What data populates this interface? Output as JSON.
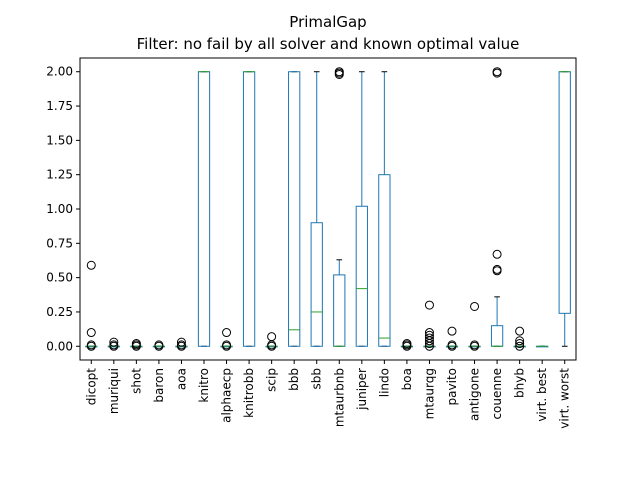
{
  "chart_data": {
    "type": "boxplot",
    "title": "PrimalGap",
    "subtitle": "Filter: no fail by all solver and known optimal value",
    "xlabel": "",
    "ylabel": "",
    "ylim": [
      -0.1,
      2.1
    ],
    "yticks": [
      0.0,
      0.25,
      0.5,
      0.75,
      1.0,
      1.25,
      1.5,
      1.75,
      2.0
    ],
    "ytick_labels": [
      "0.00",
      "0.25",
      "0.50",
      "0.75",
      "1.00",
      "1.25",
      "1.50",
      "1.75",
      "2.00"
    ],
    "grid": false,
    "legend": "none",
    "colors": {
      "box": "#1f77b4",
      "median": "#2ca02c",
      "whisker": "#000000",
      "flier": "#000000"
    },
    "categories": [
      "dicopt",
      "muriqui",
      "shot",
      "baron",
      "aoa",
      "knitro",
      "alphaecp",
      "knitrobb",
      "scip",
      "bbb",
      "sbb",
      "mtaurbnb",
      "juniper",
      "lindo",
      "boa",
      "mtaurqg",
      "pavito",
      "antigone",
      "couenne",
      "bhyb",
      "virt. best",
      "virt. worst"
    ],
    "boxes": [
      {
        "q1": 0.0,
        "median": 0.0,
        "q3": 0.0,
        "whislo": 0.0,
        "whishi": 0.0,
        "fliers": [
          0.0,
          0.01,
          0.1,
          0.59
        ]
      },
      {
        "q1": 0.0,
        "median": 0.0,
        "q3": 0.0,
        "whislo": 0.0,
        "whishi": 0.0,
        "fliers": [
          0.0,
          0.01,
          0.03
        ]
      },
      {
        "q1": 0.0,
        "median": 0.0,
        "q3": 0.0,
        "whislo": 0.0,
        "whishi": 0.0,
        "fliers": [
          0.0,
          0.01,
          0.02
        ]
      },
      {
        "q1": 0.0,
        "median": 0.0,
        "q3": 0.0,
        "whislo": 0.0,
        "whishi": 0.0,
        "fliers": [
          0.0,
          0.01
        ]
      },
      {
        "q1": 0.0,
        "median": 0.0,
        "q3": 0.0,
        "whislo": 0.0,
        "whishi": 0.0,
        "fliers": [
          0.0,
          0.01,
          0.03
        ]
      },
      {
        "q1": 0.0,
        "median": 2.0,
        "q3": 2.0,
        "whislo": 0.0,
        "whishi": 2.0,
        "fliers": []
      },
      {
        "q1": 0.0,
        "median": 0.0,
        "q3": 0.0,
        "whislo": 0.0,
        "whishi": 0.0,
        "fliers": [
          0.0,
          0.01,
          0.1
        ]
      },
      {
        "q1": 0.0,
        "median": 2.0,
        "q3": 2.0,
        "whislo": 0.0,
        "whishi": 2.0,
        "fliers": []
      },
      {
        "q1": 0.0,
        "median": 0.0,
        "q3": 0.0,
        "whislo": 0.0,
        "whishi": 0.0,
        "fliers": [
          0.0,
          0.01,
          0.07
        ]
      },
      {
        "q1": 0.0,
        "median": 0.12,
        "q3": 2.0,
        "whislo": 0.0,
        "whishi": 2.0,
        "fliers": []
      },
      {
        "q1": 0.0,
        "median": 0.25,
        "q3": 0.9,
        "whislo": 0.0,
        "whishi": 2.0,
        "fliers": []
      },
      {
        "q1": 0.0,
        "median": 0.0,
        "q3": 0.52,
        "whislo": 0.0,
        "whishi": 0.63,
        "fliers": [
          1.98,
          1.99,
          2.0
        ]
      },
      {
        "q1": 0.0,
        "median": 0.42,
        "q3": 1.02,
        "whislo": 0.0,
        "whishi": 2.0,
        "fliers": []
      },
      {
        "q1": 0.0,
        "median": 0.06,
        "q3": 1.25,
        "whislo": 0.0,
        "whishi": 2.0,
        "fliers": []
      },
      {
        "q1": 0.0,
        "median": 0.0,
        "q3": 0.0,
        "whislo": 0.0,
        "whishi": 0.0,
        "fliers": [
          0.0,
          0.01,
          0.02
        ]
      },
      {
        "q1": 0.0,
        "median": 0.0,
        "q3": 0.0,
        "whislo": 0.0,
        "whishi": 0.0,
        "fliers": [
          0.0,
          0.02,
          0.04,
          0.06,
          0.08,
          0.1,
          0.3
        ]
      },
      {
        "q1": 0.0,
        "median": 0.0,
        "q3": 0.0,
        "whislo": 0.0,
        "whishi": 0.0,
        "fliers": [
          0.0,
          0.01,
          0.11
        ]
      },
      {
        "q1": 0.0,
        "median": 0.0,
        "q3": 0.0,
        "whislo": 0.0,
        "whishi": 0.0,
        "fliers": [
          0.0,
          0.01,
          0.29
        ]
      },
      {
        "q1": 0.0,
        "median": 0.0,
        "q3": 0.15,
        "whislo": 0.0,
        "whishi": 0.36,
        "fliers": [
          0.55,
          0.56,
          0.67,
          1.99,
          2.0
        ]
      },
      {
        "q1": 0.0,
        "median": 0.0,
        "q3": 0.0,
        "whislo": 0.0,
        "whishi": 0.0,
        "fliers": [
          0.0,
          0.02,
          0.04,
          0.11
        ]
      },
      {
        "q1": 0.0,
        "median": 0.0,
        "q3": 0.0,
        "whislo": 0.0,
        "whishi": 0.0,
        "fliers": []
      },
      {
        "q1": 0.24,
        "median": 2.0,
        "q3": 2.0,
        "whislo": 0.0,
        "whishi": 2.0,
        "fliers": []
      }
    ]
  }
}
